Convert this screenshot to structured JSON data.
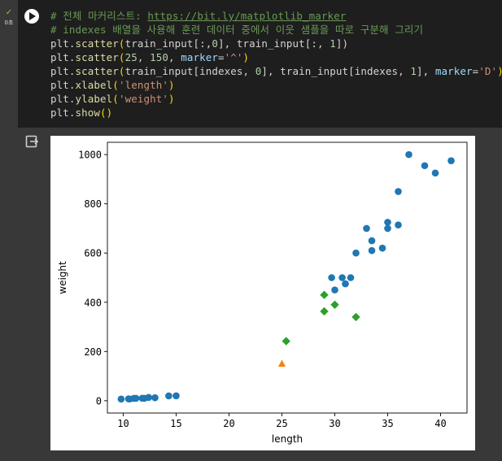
{
  "cell": {
    "status_icon": "check-icon",
    "status": "✓",
    "exec_time": "0초",
    "run_button_icon": "play-icon"
  },
  "code_lines": [
    [
      {
        "t": "# 전체 마커리스트: ",
        "c": "c-comment"
      },
      {
        "t": "https://bit.ly/matplotlib_marker",
        "c": "c-link"
      }
    ],
    [
      {
        "t": "# indexes 배열을 사용해 훈련 데이터 중에서 이웃 샘플을 따로 구분해 그리기",
        "c": "c-comment"
      }
    ],
    [
      {
        "t": "plt",
        "c": "c-pun"
      },
      {
        "t": ".",
        "c": "c-pun"
      },
      {
        "t": "scatter",
        "c": "c-fn"
      },
      {
        "t": "(",
        "c": "c-brk"
      },
      {
        "t": "train_input",
        "c": "c-pun"
      },
      {
        "t": "[:,",
        "c": "c-pun"
      },
      {
        "t": "0",
        "c": "c-num"
      },
      {
        "t": "], train_input[:, ",
        "c": "c-pun"
      },
      {
        "t": "1",
        "c": "c-num"
      },
      {
        "t": "])",
        "c": "c-pun"
      }
    ],
    [
      {
        "t": "plt",
        "c": "c-pun"
      },
      {
        "t": ".",
        "c": "c-pun"
      },
      {
        "t": "scatter",
        "c": "c-fn"
      },
      {
        "t": "(",
        "c": "c-brk"
      },
      {
        "t": "25",
        "c": "c-num"
      },
      {
        "t": ", ",
        "c": "c-pun"
      },
      {
        "t": "150",
        "c": "c-num"
      },
      {
        "t": ", ",
        "c": "c-pun"
      },
      {
        "t": "marker",
        "c": "c-var"
      },
      {
        "t": "=",
        "c": "c-pun"
      },
      {
        "t": "'^'",
        "c": "c-str"
      },
      {
        "t": ")",
        "c": "c-brk"
      }
    ],
    [
      {
        "t": "plt",
        "c": "c-pun"
      },
      {
        "t": ".",
        "c": "c-pun"
      },
      {
        "t": "scatter",
        "c": "c-fn"
      },
      {
        "t": "(",
        "c": "c-brk"
      },
      {
        "t": "train_input[indexes, ",
        "c": "c-pun"
      },
      {
        "t": "0",
        "c": "c-num"
      },
      {
        "t": "], train_input[indexes, ",
        "c": "c-pun"
      },
      {
        "t": "1",
        "c": "c-num"
      },
      {
        "t": "], ",
        "c": "c-pun"
      },
      {
        "t": "marker",
        "c": "c-var"
      },
      {
        "t": "=",
        "c": "c-pun"
      },
      {
        "t": "'D'",
        "c": "c-str"
      },
      {
        "t": ")",
        "c": "c-brk"
      }
    ],
    [
      {
        "t": "plt",
        "c": "c-pun"
      },
      {
        "t": ".",
        "c": "c-pun"
      },
      {
        "t": "xlabel",
        "c": "c-fn"
      },
      {
        "t": "(",
        "c": "c-brk"
      },
      {
        "t": "'length'",
        "c": "c-str"
      },
      {
        "t": ")",
        "c": "c-brk"
      }
    ],
    [
      {
        "t": "plt",
        "c": "c-pun"
      },
      {
        "t": ".",
        "c": "c-pun"
      },
      {
        "t": "ylabel",
        "c": "c-fn"
      },
      {
        "t": "(",
        "c": "c-brk"
      },
      {
        "t": "'weight'",
        "c": "c-str"
      },
      {
        "t": ")",
        "c": "c-brk"
      }
    ],
    [
      {
        "t": "plt",
        "c": "c-pun"
      },
      {
        "t": ".",
        "c": "c-pun"
      },
      {
        "t": "show",
        "c": "c-fn"
      },
      {
        "t": "()",
        "c": "c-brk"
      }
    ]
  ],
  "output": {
    "icon": "output-redirect-icon"
  },
  "chart_data": {
    "type": "scatter",
    "title": "",
    "xlabel": "length",
    "ylabel": "weight",
    "xlim": [
      8.5,
      42.5
    ],
    "ylim": [
      -50,
      1050
    ],
    "xticks": [
      10,
      15,
      20,
      25,
      30,
      35,
      40
    ],
    "yticks": [
      0,
      200,
      400,
      600,
      800,
      1000
    ],
    "grid": false,
    "series": [
      {
        "marker": "circle",
        "color": "#1f77b4",
        "points": [
          [
            9.8,
            6.7
          ],
          [
            10.5,
            7.5
          ],
          [
            10.6,
            7.0
          ],
          [
            11.0,
            9.7
          ],
          [
            11.2,
            9.8
          ],
          [
            11.8,
            10.0
          ],
          [
            12.0,
            9.8
          ],
          [
            12.4,
            13.4
          ],
          [
            13.0,
            12.2
          ],
          [
            14.3,
            19.7
          ],
          [
            15.0,
            19.9
          ],
          [
            29.7,
            500
          ],
          [
            30.0,
            450
          ],
          [
            30.7,
            500
          ],
          [
            31.0,
            475
          ],
          [
            31.5,
            500
          ],
          [
            32.0,
            600
          ],
          [
            33.0,
            700
          ],
          [
            33.5,
            650
          ],
          [
            33.5,
            610
          ],
          [
            34.5,
            620
          ],
          [
            35.0,
            700
          ],
          [
            35.0,
            725
          ],
          [
            36.0,
            714
          ],
          [
            36.0,
            850
          ],
          [
            37.0,
            1000
          ],
          [
            38.5,
            955
          ],
          [
            39.5,
            925
          ],
          [
            41.0,
            975
          ]
        ]
      },
      {
        "marker": "triangle",
        "color": "#ff7f0e",
        "points": [
          [
            25,
            150
          ]
        ]
      },
      {
        "marker": "diamond",
        "color": "#2ca02c",
        "points": [
          [
            25.4,
            242
          ],
          [
            29.0,
            430
          ],
          [
            29.0,
            363
          ],
          [
            30.0,
            390
          ],
          [
            32.0,
            340
          ]
        ]
      }
    ]
  }
}
